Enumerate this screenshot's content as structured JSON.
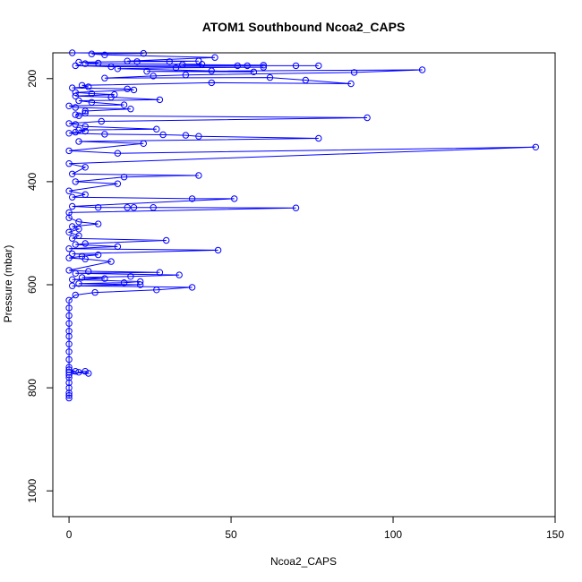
{
  "chart_data": {
    "type": "scatter",
    "title": "ATOM1 Southbound Ncoa2_CAPS",
    "xlabel": "Ncoa2_CAPS",
    "ylabel": "Pressure (mbar)",
    "xlim": [
      -5,
      150
    ],
    "ylim": [
      1050,
      150
    ],
    "x_ticks": [
      0,
      50,
      100,
      150
    ],
    "y_ticks": [
      200,
      400,
      600,
      800,
      1000
    ],
    "connected": true,
    "series": [
      {
        "color": "#0000ff",
        "marker": "open-circle",
        "points": [
          [
            0,
            820
          ],
          [
            0,
            815
          ],
          [
            0,
            810
          ],
          [
            0,
            800
          ],
          [
            0,
            790
          ],
          [
            0,
            780
          ],
          [
            0,
            775
          ],
          [
            3,
            770
          ],
          [
            5,
            768
          ],
          [
            6,
            772
          ],
          [
            0,
            770
          ],
          [
            2,
            768
          ],
          [
            0,
            765
          ],
          [
            0,
            760
          ],
          [
            0,
            745
          ],
          [
            0,
            730
          ],
          [
            0,
            715
          ],
          [
            0,
            700
          ],
          [
            0,
            690
          ],
          [
            0,
            675
          ],
          [
            0,
            660
          ],
          [
            0,
            645
          ],
          [
            0,
            630
          ],
          [
            2,
            620
          ],
          [
            8,
            615
          ],
          [
            27,
            610
          ],
          [
            38,
            605
          ],
          [
            1,
            602
          ],
          [
            22,
            600
          ],
          [
            3,
            598
          ],
          [
            17,
            596
          ],
          [
            22,
            594
          ],
          [
            1,
            590
          ],
          [
            11,
            588
          ],
          [
            4,
            586
          ],
          [
            19,
            584
          ],
          [
            34,
            581
          ],
          [
            2,
            578
          ],
          [
            28,
            576
          ],
          [
            6,
            574
          ],
          [
            0,
            572
          ],
          [
            13,
            555
          ],
          [
            5,
            550
          ],
          [
            0,
            548
          ],
          [
            4,
            545
          ],
          [
            9,
            542
          ],
          [
            1,
            540
          ],
          [
            46,
            533
          ],
          [
            0,
            530
          ],
          [
            15,
            526
          ],
          [
            2,
            522
          ],
          [
            5,
            520
          ],
          [
            30,
            514
          ],
          [
            1,
            510
          ],
          [
            3,
            505
          ],
          [
            0,
            498
          ],
          [
            3,
            492
          ],
          [
            1,
            487
          ],
          [
            9,
            482
          ],
          [
            3,
            478
          ],
          [
            0,
            470
          ],
          [
            0,
            460
          ],
          [
            70,
            451
          ],
          [
            26,
            450
          ],
          [
            20,
            450
          ],
          [
            18,
            450
          ],
          [
            9,
            450
          ],
          [
            1,
            448
          ],
          [
            51,
            433
          ],
          [
            38,
            433
          ],
          [
            1,
            430
          ],
          [
            5,
            425
          ],
          [
            0,
            418
          ],
          [
            15,
            404
          ],
          [
            2,
            400
          ],
          [
            17,
            391
          ],
          [
            40,
            388
          ],
          [
            1,
            385
          ],
          [
            5,
            372
          ],
          [
            0,
            365
          ],
          [
            144,
            333
          ],
          [
            15,
            345
          ],
          [
            0,
            340
          ],
          [
            23,
            326
          ],
          [
            3,
            322
          ],
          [
            77,
            316
          ],
          [
            40,
            312
          ],
          [
            36,
            310
          ],
          [
            29,
            309
          ],
          [
            11,
            308
          ],
          [
            0,
            306
          ],
          [
            2,
            304
          ],
          [
            5,
            302
          ],
          [
            3,
            300
          ],
          [
            27,
            298
          ],
          [
            5,
            293
          ],
          [
            2,
            289
          ],
          [
            0,
            287
          ],
          [
            10,
            283
          ],
          [
            92,
            276
          ],
          [
            3,
            272
          ],
          [
            2,
            270
          ],
          [
            5,
            267
          ],
          [
            5,
            263
          ],
          [
            19,
            259
          ],
          [
            2,
            256
          ],
          [
            0,
            253
          ],
          [
            17,
            251
          ],
          [
            7,
            246
          ],
          [
            3,
            243
          ],
          [
            28,
            241
          ],
          [
            13,
            236
          ],
          [
            2,
            234
          ],
          [
            14,
            231
          ],
          [
            7,
            229
          ],
          [
            2,
            227
          ],
          [
            20,
            222
          ],
          [
            18,
            220
          ],
          [
            1,
            218
          ],
          [
            6,
            216
          ],
          [
            4,
            213
          ],
          [
            44,
            208
          ],
          [
            87,
            210
          ],
          [
            73,
            203
          ],
          [
            62,
            198
          ],
          [
            11,
            199
          ],
          [
            26,
            195
          ],
          [
            36,
            193
          ],
          [
            88,
            188
          ],
          [
            109,
            183
          ],
          [
            24,
            186
          ],
          [
            57,
            187
          ],
          [
            44,
            185
          ],
          [
            15,
            181
          ],
          [
            33,
            179
          ],
          [
            60,
            178
          ],
          [
            13,
            177
          ],
          [
            2,
            175
          ],
          [
            52,
            175
          ],
          [
            70,
            175
          ],
          [
            77,
            175
          ],
          [
            55,
            175
          ],
          [
            60,
            174
          ],
          [
            35,
            173
          ],
          [
            41,
            172
          ],
          [
            5,
            171
          ],
          [
            9,
            170
          ],
          [
            3,
            168
          ],
          [
            21,
            167
          ],
          [
            31,
            167
          ],
          [
            40,
            166
          ],
          [
            18,
            166
          ],
          [
            45,
            159
          ],
          [
            11,
            154
          ],
          [
            7,
            152
          ],
          [
            23,
            151
          ],
          [
            1,
            150
          ]
        ]
      }
    ]
  }
}
